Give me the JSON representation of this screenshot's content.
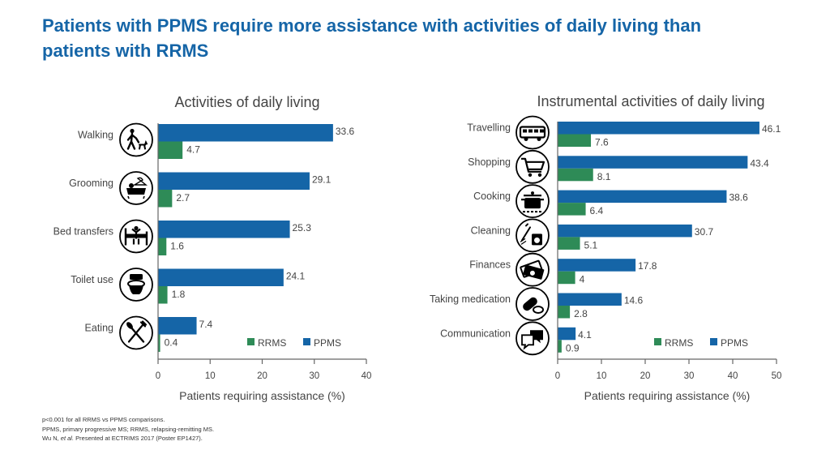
{
  "page": {
    "title": "Patients with PPMS require more assistance with activities of daily living than patients with RRMS",
    "title_color": "#1565a7",
    "footnotes": [
      "p<0.001 for all RRMS vs PPMS comparisons.",
      "PPMS, primary progressive MS; RRMS, relapsing-remitting MS."
    ],
    "citation": {
      "authors": "Wu N, ",
      "etal": "et al.",
      "rest": " Presented at ECTRIMS 2017 (Poster EP1427)."
    }
  },
  "chart_data": [
    {
      "type": "bar",
      "orientation": "horizontal",
      "title": "Activities of daily living",
      "xlabel": "Patients requiring assistance (%)",
      "ylabel": "",
      "xlim": [
        0,
        40
      ],
      "xticks": [
        0,
        10,
        20,
        30,
        40
      ],
      "grid": false,
      "legend_position": "bottom-right",
      "categories": [
        "Walking",
        "Grooming",
        "Bed transfers",
        "Toilet use",
        "Eating"
      ],
      "icons": [
        "walking-dog-icon",
        "grooming-bath-icon",
        "bed-transfer-icon",
        "toilet-icon",
        "eating-utensils-icon"
      ],
      "series": [
        {
          "name": "PPMS",
          "color": "#1565a7",
          "values": [
            33.6,
            29.1,
            25.3,
            24.1,
            7.4
          ]
        },
        {
          "name": "RRMS",
          "color": "#2e8b57",
          "values": [
            4.7,
            2.7,
            1.6,
            1.8,
            0.4
          ]
        }
      ]
    },
    {
      "type": "bar",
      "orientation": "horizontal",
      "title": "Instrumental activities of daily living",
      "xlabel": "Patients requiring assistance (%)",
      "ylabel": "",
      "xlim": [
        0,
        50
      ],
      "xticks": [
        0,
        10,
        20,
        30,
        40,
        50
      ],
      "grid": false,
      "legend_position": "bottom-right",
      "categories": [
        "Travelling",
        "Shopping",
        "Cooking",
        "Cleaning",
        "Finances",
        "Taking medication",
        "Communication"
      ],
      "icons": [
        "bus-icon",
        "shopping-cart-icon",
        "cooking-pot-icon",
        "cleaning-icon",
        "money-icon",
        "pill-icon",
        "chat-icon"
      ],
      "series": [
        {
          "name": "PPMS",
          "color": "#1565a7",
          "values": [
            46.1,
            43.4,
            38.6,
            30.7,
            17.8,
            14.6,
            4.1
          ]
        },
        {
          "name": "RRMS",
          "color": "#2e8b57",
          "values": [
            7.6,
            8.1,
            6.4,
            5.1,
            4,
            2.8,
            0.9
          ]
        }
      ]
    }
  ]
}
